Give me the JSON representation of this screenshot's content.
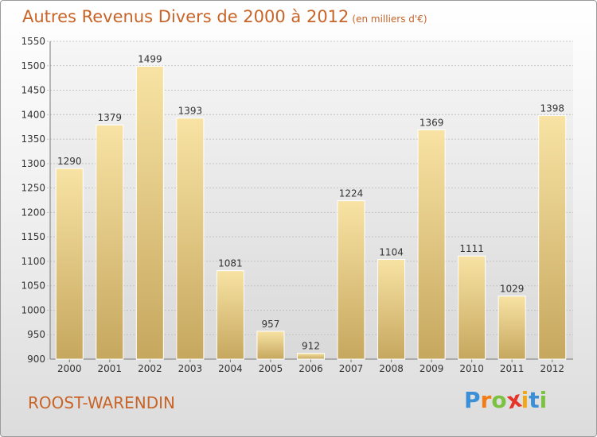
{
  "title": "Autres Revenus Divers de 2000 à 2012",
  "subtitle": "(en milliers d'€)",
  "location": "ROOST-WARENDIN",
  "logo": {
    "letters": [
      "P",
      "r",
      "o",
      "x",
      "i",
      "t",
      "i"
    ],
    "colors": [
      "#3b8fd6",
      "#f07d1a",
      "#7cc242",
      "#e6332a",
      "#f0a81a",
      "#3b8fd6",
      "#7cc242"
    ]
  },
  "chart_data": {
    "type": "bar",
    "title": "Autres Revenus Divers de 2000 à 2012",
    "categories": [
      "2000",
      "2001",
      "2002",
      "2003",
      "2004",
      "2005",
      "2006",
      "2007",
      "2008",
      "2009",
      "2010",
      "2011",
      "2012"
    ],
    "values": [
      1290,
      1379,
      1499,
      1393,
      1081,
      957,
      912,
      1224,
      1104,
      1369,
      1111,
      1029,
      1398
    ],
    "ylim": [
      900,
      1550
    ],
    "yticks": [
      900,
      950,
      1000,
      1050,
      1100,
      1150,
      1200,
      1250,
      1300,
      1350,
      1400,
      1450,
      1500,
      1550
    ],
    "grid": true,
    "bar_color": "#e8c97e"
  }
}
